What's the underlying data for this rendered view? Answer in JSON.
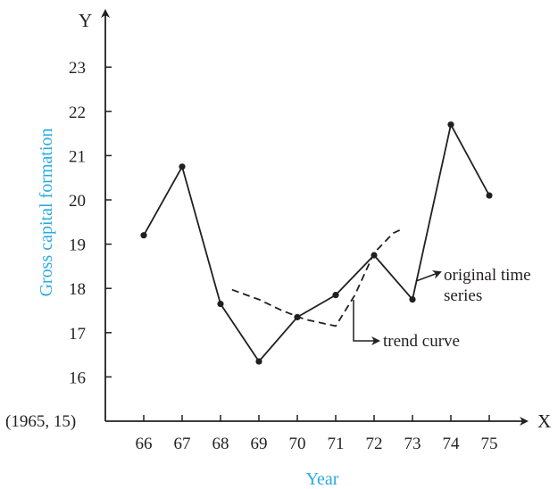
{
  "chart_data": {
    "type": "line",
    "origin_label": "(1965, 15)",
    "x_axis_letter": "X",
    "y_axis_letter": "Y",
    "xlabel": "Year",
    "ylabel": "Gross capital formation",
    "label_color": "#29abe2",
    "line_color": "#231f20",
    "x_ticks": [
      "66",
      "67",
      "68",
      "69",
      "70",
      "71",
      "72",
      "73",
      "74",
      "75"
    ],
    "y_ticks": [
      "16",
      "17",
      "18",
      "19",
      "20",
      "21",
      "22",
      "23"
    ],
    "xlim": [
      65,
      76
    ],
    "ylim": [
      15,
      24
    ],
    "series": [
      {
        "name": "original time series",
        "style": "solid",
        "markers": true,
        "x": [
          66,
          67,
          68,
          69,
          70,
          71,
          72,
          73,
          74,
          75
        ],
        "y": [
          19.2,
          20.75,
          17.65,
          16.35,
          17.35,
          17.85,
          18.75,
          17.75,
          21.7,
          20.1
        ]
      },
      {
        "name": "trend curve",
        "style": "dashed",
        "markers": false,
        "x": [
          68.3,
          69.0,
          69.6,
          70.2,
          71.0,
          71.5,
          72.0,
          72.5,
          72.75
        ],
        "y": [
          17.97,
          17.75,
          17.5,
          17.3,
          17.15,
          17.85,
          18.8,
          19.25,
          19.35
        ]
      }
    ],
    "annotations": [
      {
        "text_lines": [
          "original time",
          "series"
        ],
        "points_to": "original time series"
      },
      {
        "text_lines": [
          "trend curve"
        ],
        "points_to": "trend curve"
      }
    ]
  }
}
